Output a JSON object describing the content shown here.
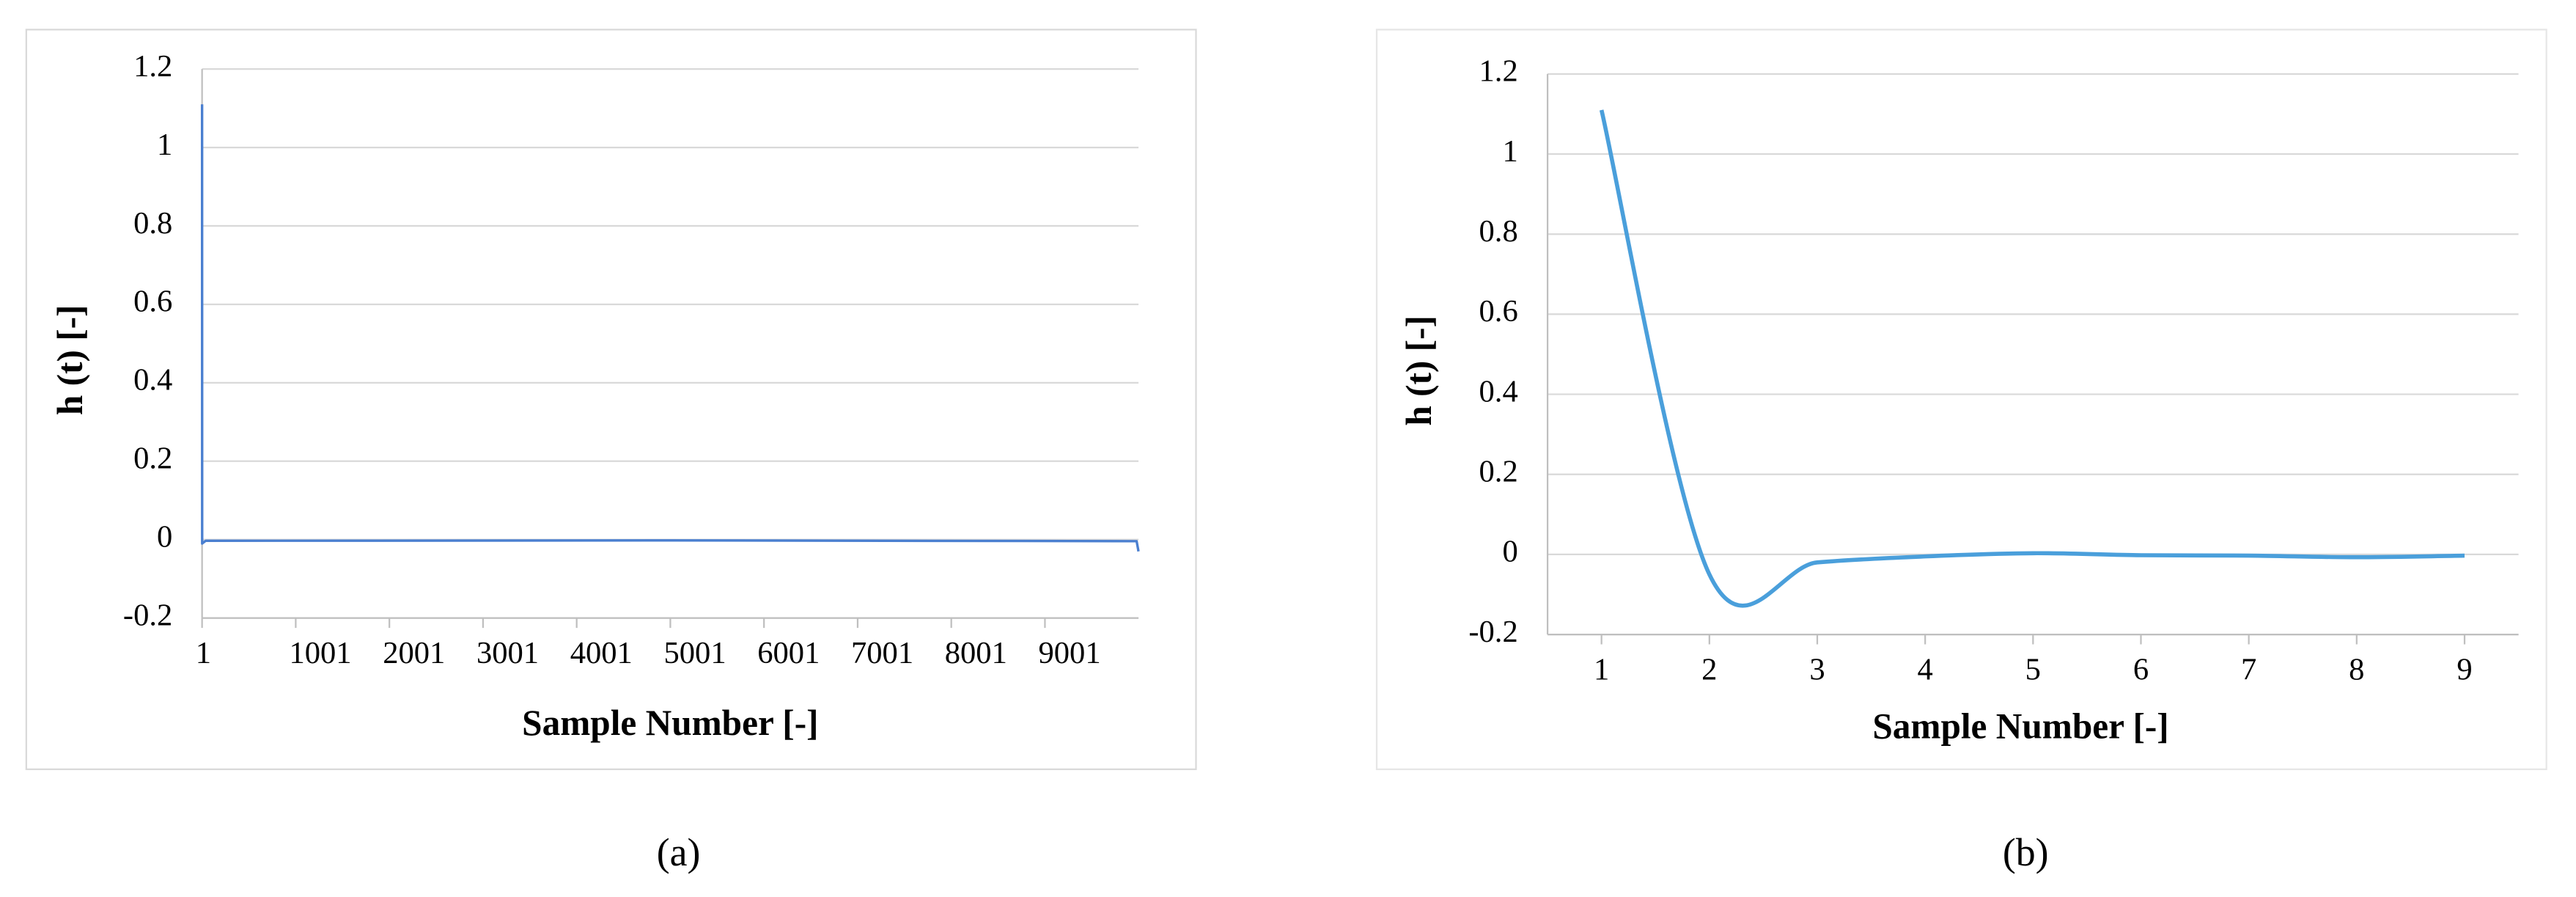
{
  "chart_data": [
    {
      "type": "line",
      "caption": "(a)",
      "xlabel": "Sample Number [-]",
      "ylabel": "h (t) [-]",
      "x": [
        1,
        2,
        40,
        5000,
        9980,
        10000
      ],
      "values": [
        1.11,
        -0.01,
        -0.003,
        -0.002,
        -0.004,
        -0.03
      ],
      "color": "#4a7fd0",
      "smooth": false,
      "xlim": [
        1,
        10000
      ],
      "xticks": [
        1,
        1001,
        2001,
        3001,
        4001,
        5001,
        6001,
        7001,
        8001,
        9001
      ],
      "ylim": [
        -0.2,
        1.2
      ],
      "yticks": [
        -0.2,
        0,
        0.2,
        0.4,
        0.6,
        0.8,
        1,
        1.2
      ],
      "grid": true
    },
    {
      "type": "line",
      "caption": "(b)",
      "xlabel": "Sample Number [-]",
      "ylabel": "h (t) [-]",
      "x": [
        1,
        2,
        3,
        4,
        5,
        6,
        7,
        8,
        9
      ],
      "values": [
        1.11,
        -0.05,
        -0.02,
        -0.005,
        0.003,
        -0.002,
        -0.003,
        -0.007,
        -0.003
      ],
      "color": "#4a9fdb",
      "smooth": true,
      "xlim": [
        0.5,
        9.5
      ],
      "xticks": [
        1,
        2,
        3,
        4,
        5,
        6,
        7,
        8,
        9
      ],
      "ylim": [
        -0.2,
        1.2
      ],
      "yticks": [
        -0.2,
        0,
        0.2,
        0.4,
        0.6,
        0.8,
        1,
        1.2
      ],
      "grid": true
    }
  ]
}
